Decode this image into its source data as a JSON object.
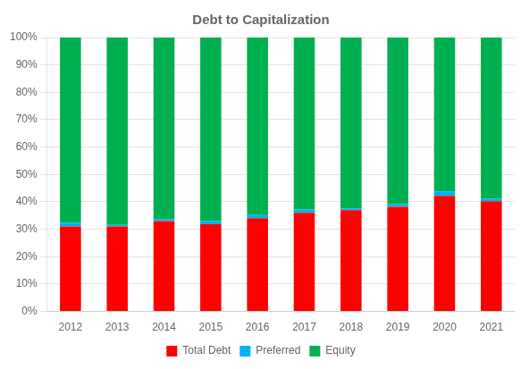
{
  "chart_data": {
    "type": "bar",
    "title": "Debt to Capitalization",
    "categories": [
      "2012",
      "2013",
      "2014",
      "2015",
      "2016",
      "2017",
      "2018",
      "2019",
      "2020",
      "2021"
    ],
    "series": [
      {
        "name": "Total Debt",
        "color": "#FF0000",
        "values": [
          0.31,
          0.31,
          0.33,
          0.318,
          0.34,
          0.36,
          0.37,
          0.382,
          0.422,
          0.402
        ]
      },
      {
        "name": "Preferred",
        "color": "#00B0F0",
        "values": [
          0.013,
          0.006,
          0.007,
          0.012,
          0.012,
          0.012,
          0.006,
          0.01,
          0.016,
          0.01
        ]
      },
      {
        "name": "Equity",
        "color": "#00B050",
        "values": [
          0.677,
          0.684,
          0.663,
          0.67,
          0.648,
          0.628,
          0.624,
          0.608,
          0.562,
          0.588
        ]
      }
    ],
    "stacked": true,
    "ylim": [
      0,
      1.0
    ],
    "yticks": [
      {
        "value": 0,
        "label": "0%"
      },
      {
        "value": 0.1,
        "label": "10%"
      },
      {
        "value": 0.2,
        "label": "20%"
      },
      {
        "value": 0.3,
        "label": "30%"
      },
      {
        "value": 0.4,
        "label": "40%"
      },
      {
        "value": 0.5,
        "label": "50%"
      },
      {
        "value": 0.6,
        "label": "60%"
      },
      {
        "value": 0.7,
        "label": "70%"
      },
      {
        "value": 0.8,
        "label": "80%"
      },
      {
        "value": 0.9,
        "label": "90%"
      },
      {
        "value": 1.0,
        "label": "100%"
      }
    ],
    "grid": true,
    "legend": "bottom"
  }
}
